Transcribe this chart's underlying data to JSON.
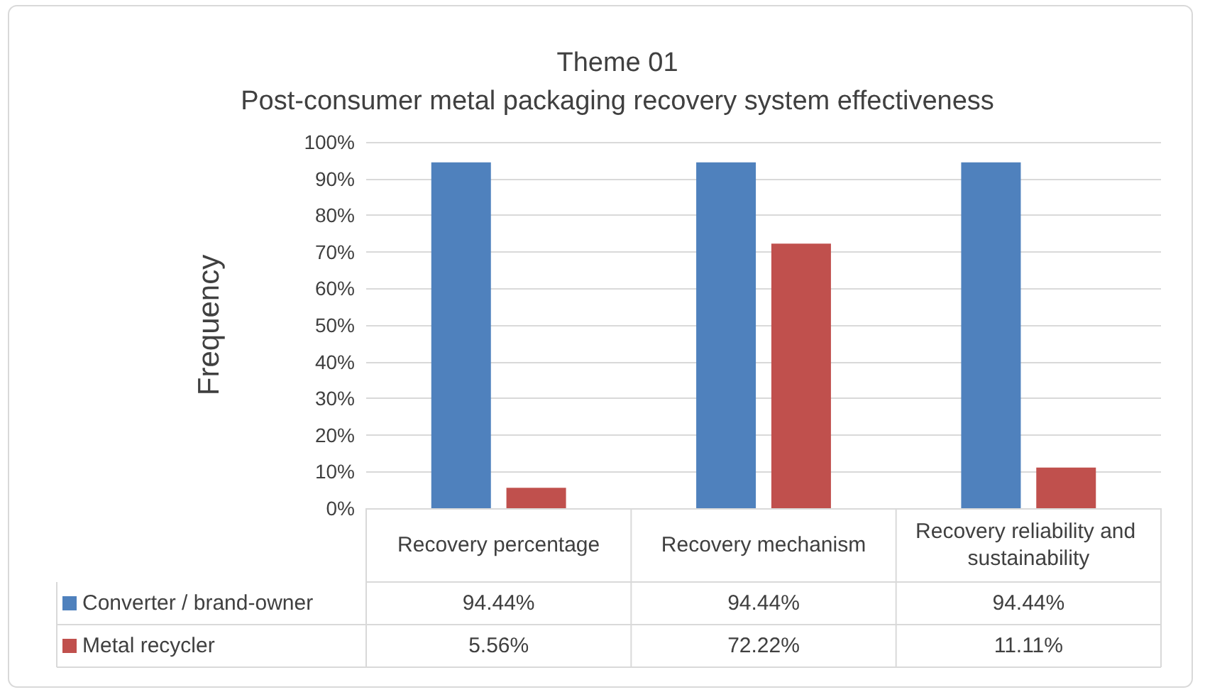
{
  "chart_data": {
    "type": "bar",
    "title": "Theme 01",
    "subtitle": "Post-consumer metal packaging recovery system effectiveness",
    "ylabel": "Frequency",
    "categories": [
      "Recovery percentage",
      "Recovery mechanism",
      "Recovery reliability and sustainability"
    ],
    "series": [
      {
        "name": "Converter / brand-owner",
        "color": "#4f81bd",
        "values": [
          94.44,
          94.44,
          94.44
        ],
        "value_labels": [
          "94.44%",
          "94.44%",
          "94.44%"
        ]
      },
      {
        "name": "Metal recycler",
        "color": "#c0504d",
        "values": [
          5.56,
          72.22,
          11.11
        ],
        "value_labels": [
          "5.56%",
          "72.22%",
          "11.11%"
        ]
      }
    ],
    "ylim": [
      0,
      100
    ],
    "yticks": [
      {
        "value": 0,
        "label": "0%"
      },
      {
        "value": 10,
        "label": "10%"
      },
      {
        "value": 20,
        "label": "20%"
      },
      {
        "value": 30,
        "label": "30%"
      },
      {
        "value": 40,
        "label": "40%"
      },
      {
        "value": 50,
        "label": "50%"
      },
      {
        "value": 60,
        "label": "60%"
      },
      {
        "value": 70,
        "label": "70%"
      },
      {
        "value": 80,
        "label": "80%"
      },
      {
        "value": 90,
        "label": "90%"
      },
      {
        "value": 100,
        "label": "100%"
      }
    ],
    "grid": "y",
    "legend": "bottom"
  }
}
